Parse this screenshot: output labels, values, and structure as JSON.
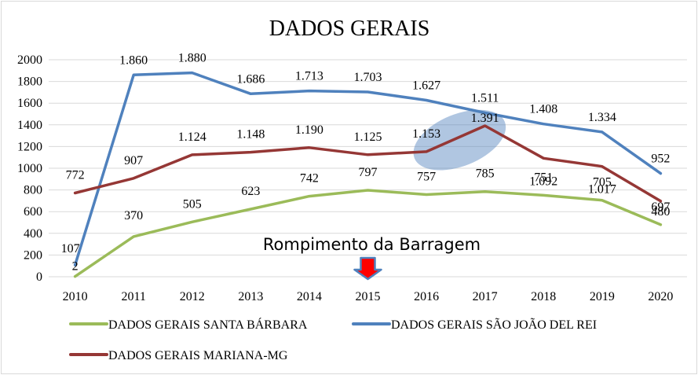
{
  "chart_data": {
    "type": "line",
    "title": "DADOS GERAIS",
    "xlabel": "",
    "ylabel": "",
    "x": [
      "2010",
      "2011",
      "2012",
      "2013",
      "2014",
      "2015",
      "2016",
      "2017",
      "2018",
      "2019",
      "2020"
    ],
    "ylim": [
      0,
      2000
    ],
    "yticks": [
      "0",
      "200",
      "400",
      "600",
      "800",
      "1000",
      "1200",
      "1400",
      "1600",
      "1800",
      "2000"
    ],
    "grid": true,
    "legend_position": "bottom",
    "series": [
      {
        "name": "DADOS GERAIS SANTA BÁRBARA",
        "color": "#9bbb59",
        "values": [
          2,
          370,
          505,
          623,
          742,
          797,
          757,
          785,
          751,
          705,
          480
        ],
        "labels": [
          "2",
          "370",
          "505",
          "623",
          "742",
          "797",
          "757",
          "785",
          "751",
          "705",
          "480"
        ]
      },
      {
        "name": "DADOS GERAIS SÃO JOÃO DEL REI",
        "color": "#4f81bd",
        "values": [
          107,
          1860,
          1880,
          1686,
          1713,
          1703,
          1627,
          1511,
          1408,
          1334,
          952
        ],
        "labels": [
          "107",
          "1.860",
          "1.880",
          "1.686",
          "1.713",
          "1.703",
          "1.627",
          "1.511",
          "1.408",
          "1.334",
          "952"
        ]
      },
      {
        "name": "DADOS GERAIS MARIANA-MG",
        "color": "#953735",
        "values": [
          772,
          907,
          1124,
          1148,
          1190,
          1125,
          1153,
          1391,
          1092,
          1017,
          697
        ],
        "labels": [
          "772",
          "907",
          "1.124",
          "1.148",
          "1.190",
          "1.125",
          "1.153",
          "1.391",
          "1.092",
          "1.017",
          "697"
        ]
      }
    ],
    "annotations": [
      {
        "text": "Rompimento da Barragem",
        "x": "2015",
        "marker": "red-down-arrow",
        "arrow_color": "#ff0000"
      },
      {
        "marker": "highlight-ellipse",
        "x": [
          "2016",
          "2017"
        ],
        "color": "#4f81bd"
      }
    ]
  }
}
